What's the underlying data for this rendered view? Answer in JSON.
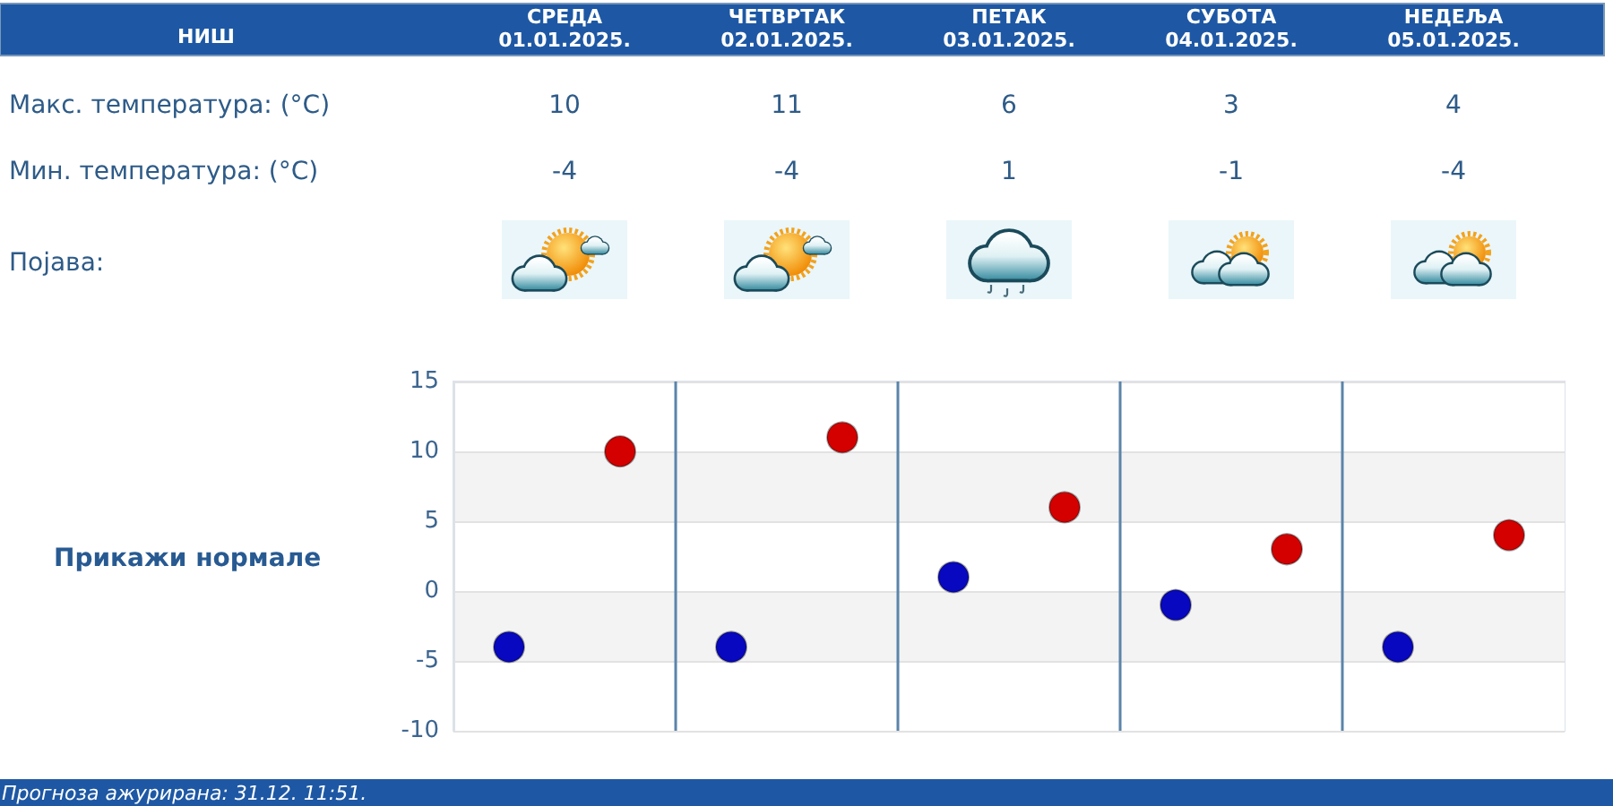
{
  "chart_data": {
    "type": "scatter",
    "title": "НИШ",
    "categories": [
      null,
      null,
      null,
      null,
      null
    ],
    "series": [
      {
        "color": "#d40000",
        "values": [
          10,
          11,
          6,
          3,
          4
        ]
      },
      {
        "color": "#0808c0",
        "values": [
          -4,
          -4,
          1,
          -1,
          -4
        ]
      }
    ],
    "ylim": [
      -10,
      15
    ],
    "yticks": [
      -10,
      -5,
      0,
      5,
      10,
      15
    ],
    "grid": true,
    "marker": "circle",
    "data_labels": true,
    "annotations": [
      "СРЕДА\n01.01.2025.",
      "ЧЕТВРТАК\n02.01.2025.",
      "ПЕТАК\n03.01.2025.",
      "СУБОТА\n04.01.2025.",
      "НЕДЕЉА\n05.01.2025.",
      "Макс. температура: (°C)",
      "Мин. температура: (°C)",
      "Појава:",
      "Прикажи нормале",
      "Прогноза ажурирана: 31.12. 11:51."
    ]
  }
}
